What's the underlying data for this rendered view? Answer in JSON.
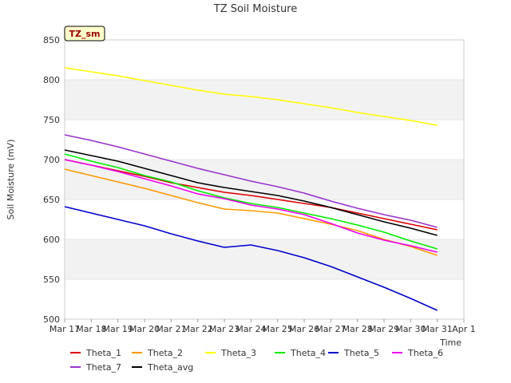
{
  "chart_data": {
    "type": "line",
    "title": "TZ Soil Moisture",
    "badge": "TZ_sm",
    "xlabel": "Time",
    "ylabel": "Soil Moisture (mV)",
    "ylim": [
      500,
      850
    ],
    "yticks": [
      500,
      550,
      600,
      650,
      700,
      750,
      800,
      850
    ],
    "xlim": [
      "Mar 17",
      "Apr 1"
    ],
    "xticks": [
      "Mar 17",
      "Mar 18",
      "Mar 19",
      "Mar 20",
      "Mar 21",
      "Mar 22",
      "Mar 23",
      "Mar 24",
      "Mar 25",
      "Mar 26",
      "Mar 27",
      "Mar 28",
      "Mar 29",
      "Mar 30",
      "Mar 31",
      "Apr 1"
    ],
    "x_days": [
      17,
      18,
      19,
      20,
      21,
      22,
      23,
      24,
      25,
      26,
      27,
      28,
      29,
      30,
      31
    ],
    "x": [
      "Mar 17",
      "Mar 18",
      "Mar 19",
      "Mar 20",
      "Mar 21",
      "Mar 22",
      "Mar 23",
      "Mar 24",
      "Mar 25",
      "Mar 26",
      "Mar 27",
      "Mar 28",
      "Mar 29",
      "Mar 30",
      "Mar 31"
    ],
    "grid": true,
    "legend_position": "bottom",
    "series": [
      {
        "name": "Theta_1",
        "color": "#dd0000",
        "values": [
          700,
          693,
          686,
          679,
          671,
          665,
          659,
          655,
          650,
          645,
          640,
          633,
          626,
          619,
          612
        ]
      },
      {
        "name": "Theta_2",
        "color": "#ff9900",
        "values": [
          688,
          680,
          672,
          664,
          655,
          646,
          638,
          636,
          633,
          626,
          619,
          611,
          600,
          591,
          580
        ]
      },
      {
        "name": "Theta_3",
        "color": "#ffff00",
        "values": [
          815,
          810,
          805,
          799,
          793,
          787,
          782,
          779,
          775,
          770,
          765,
          759,
          754,
          749,
          743
        ]
      },
      {
        "name": "Theta_4",
        "color": "#00ee00",
        "values": [
          707,
          698,
          690,
          680,
          672,
          661,
          652,
          645,
          640,
          633,
          626,
          618,
          609,
          598,
          588
        ]
      },
      {
        "name": "Theta_5",
        "color": "#0000cc",
        "values": [
          641,
          633,
          625,
          617,
          607,
          598,
          590,
          593,
          586,
          577,
          566,
          553,
          540,
          526,
          511
        ]
      },
      {
        "name": "Theta_6",
        "color": "#ee00ee",
        "values": [
          700,
          693,
          685,
          676,
          667,
          657,
          651,
          643,
          638,
          631,
          620,
          608,
          599,
          592,
          584
        ]
      },
      {
        "name": "Theta_7",
        "color": "#9933cc",
        "values": [
          731,
          724,
          716,
          707,
          698,
          689,
          681,
          673,
          666,
          658,
          648,
          639,
          631,
          624,
          615
        ]
      },
      {
        "name": "Theta_avg",
        "color": "#000000",
        "values": [
          712,
          705,
          698,
          689,
          680,
          671,
          665,
          660,
          655,
          648,
          640,
          631,
          622,
          614,
          605
        ]
      }
    ]
  }
}
